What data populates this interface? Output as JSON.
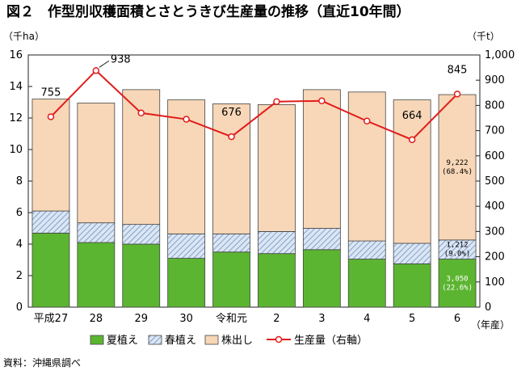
{
  "title": "図２　作型別収穫面積とさとうきび生産量の推移（直近10年間）",
  "source": "資料：沖縄県調べ",
  "colors": {
    "summer": "#5cb531",
    "spring_fill": "#dbe6f4",
    "spring_hatch": "#6f8fc0",
    "ratoon": "#f7d7b7",
    "line": "#e21b1b",
    "outline": "#444444"
  },
  "chart_data": {
    "type": "bar",
    "stacked": true,
    "categories": [
      "平成27",
      "28",
      "29",
      "30",
      "令和元",
      "2",
      "3",
      "4",
      "5",
      "6"
    ],
    "x_unit": "（年産）",
    "y_left": {
      "unit": "（千ha）",
      "ylim": [
        0,
        16
      ],
      "ticks": [
        0,
        2,
        4,
        6,
        8,
        10,
        12,
        14,
        16
      ],
      "tick_labels": [
        "0",
        "2",
        "4",
        "6",
        "8",
        "10",
        "12",
        "14",
        "16"
      ]
    },
    "y_right": {
      "unit": "（千t）",
      "ylim": [
        0,
        1000
      ],
      "ticks": [
        0,
        100,
        200,
        300,
        400,
        500,
        600,
        700,
        800,
        900,
        1000
      ],
      "tick_labels": [
        "0",
        "100",
        "200",
        "300",
        "400",
        "500",
        "600",
        "700",
        "800",
        "900",
        "1,000"
      ]
    },
    "series": [
      {
        "name": "夏植え",
        "axis": "left",
        "values": [
          4.7,
          4.1,
          4.0,
          3.1,
          3.5,
          3.4,
          3.65,
          3.05,
          2.75,
          3.05
        ]
      },
      {
        "name": "春植え",
        "axis": "left",
        "values": [
          1.4,
          1.25,
          1.25,
          1.55,
          1.15,
          1.4,
          1.35,
          1.15,
          1.3,
          1.212
        ]
      },
      {
        "name": "株出し",
        "axis": "left",
        "values": [
          7.1,
          7.6,
          8.55,
          8.5,
          8.25,
          8.05,
          8.8,
          9.45,
          9.1,
          9.222
        ]
      },
      {
        "name": "生産量（右軸）",
        "axis": "right",
        "type": "line",
        "values": [
          755,
          938,
          770,
          745,
          676,
          815,
          818,
          738,
          664,
          845
        ]
      }
    ],
    "line_labels": [
      {
        "index": 0,
        "text": "755"
      },
      {
        "index": 1,
        "text": "938"
      },
      {
        "index": 4,
        "text": "676"
      },
      {
        "index": 8,
        "text": "664"
      },
      {
        "index": 9,
        "text": "845"
      }
    ],
    "bar_annotations": [
      {
        "index": 9,
        "series": "株出し",
        "lines": [
          "9,222",
          "(68.4%)"
        ]
      },
      {
        "index": 9,
        "series": "春植え",
        "lines": [
          "1,212",
          "(9.0%)"
        ]
      },
      {
        "index": 9,
        "series": "夏植え",
        "lines": [
          "3,050",
          "(22.6%)"
        ]
      }
    ],
    "legend": [
      "夏植え",
      "春植え",
      "株出し",
      "生産量（右軸）"
    ],
    "legend_position": "bottom",
    "grid": false
  }
}
